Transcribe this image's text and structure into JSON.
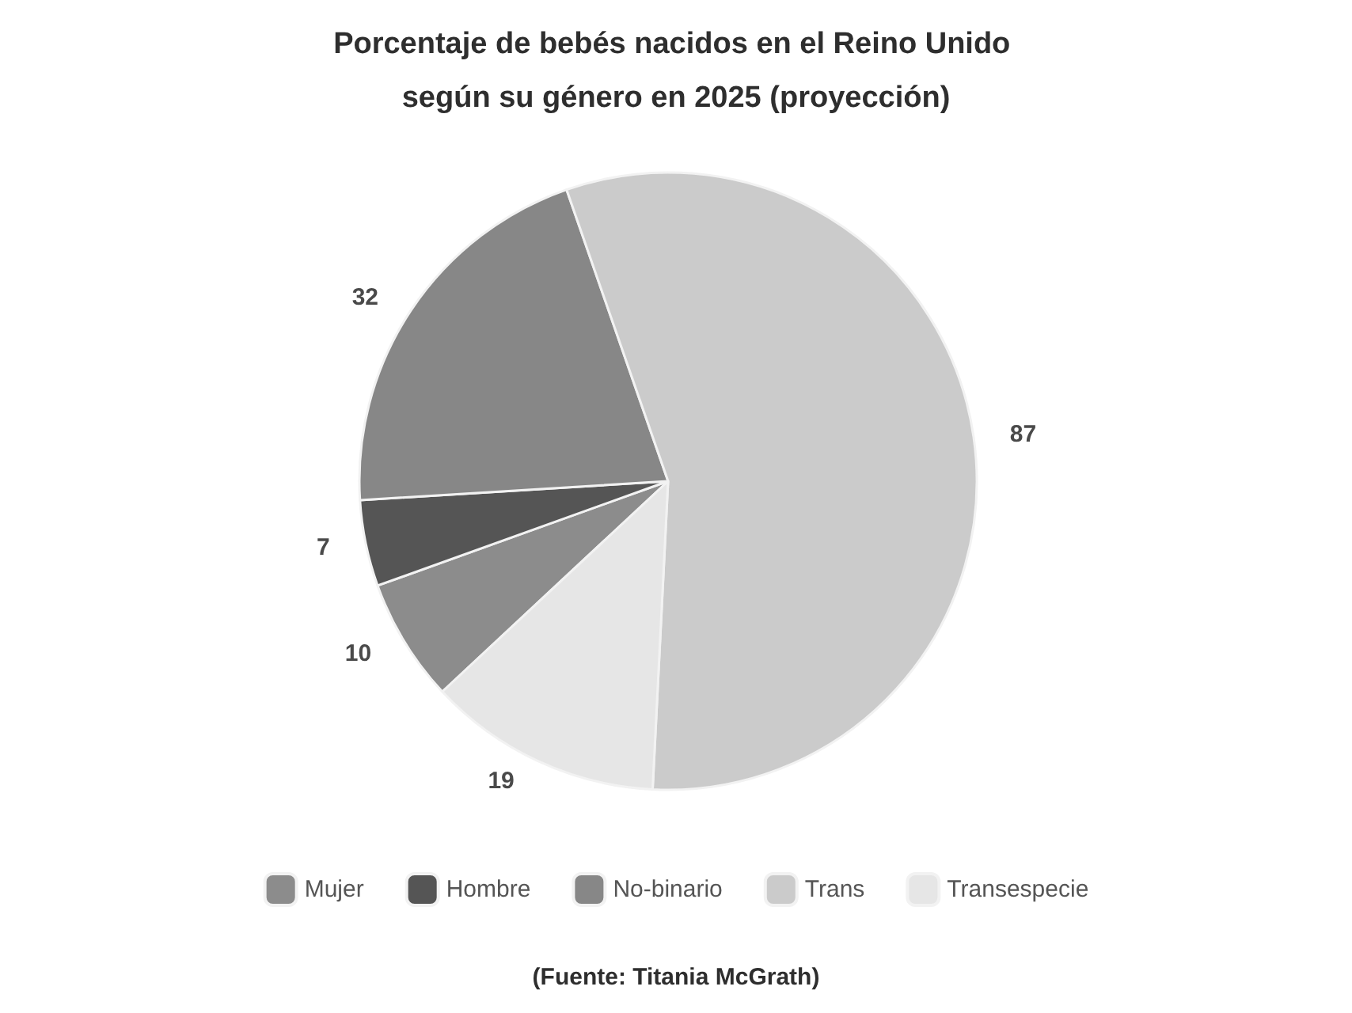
{
  "chart_data": {
    "type": "pie",
    "title": "Porcentaje de bebés nacidos en el Reino Unido según su género en 2025 (proyección)",
    "categories": [
      "Mujer",
      "Hombre",
      "No-binario",
      "Trans",
      "Transespecie"
    ],
    "values": [
      10,
      7,
      32,
      87,
      19
    ],
    "colors": [
      "#8c8c8c",
      "#555555",
      "#878787",
      "#cbcbcb",
      "#e6e6e6"
    ],
    "data_labels": true,
    "legend": "bottom",
    "annotations": [
      "(Fuente: Titania McGrath)"
    ]
  }
}
